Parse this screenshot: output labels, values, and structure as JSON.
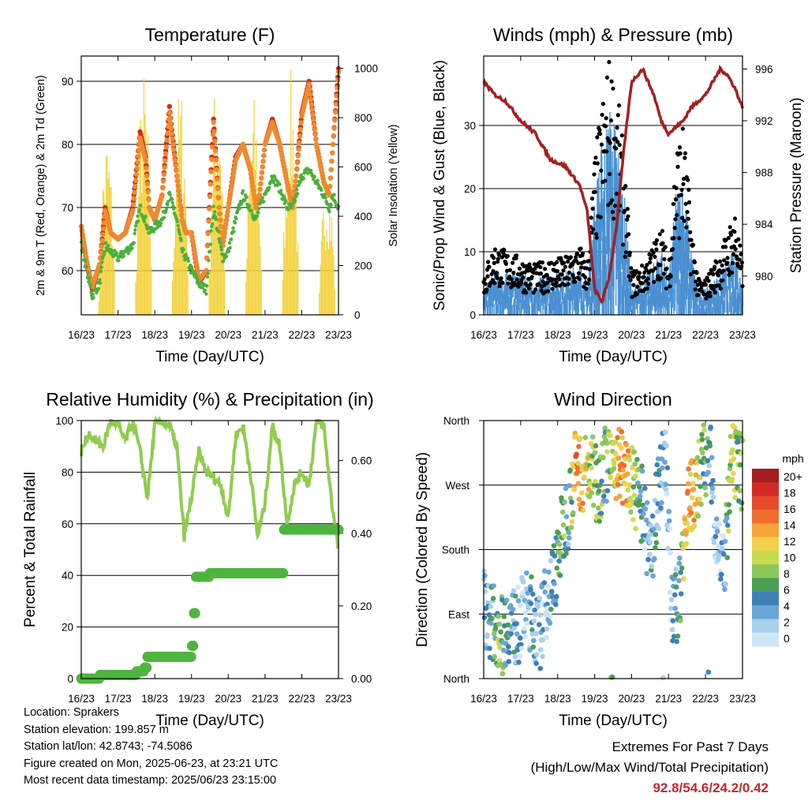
{
  "x_tick_labels": [
    "16/23",
    "17/23",
    "18/23",
    "19/23",
    "20/23",
    "21/23",
    "22/23",
    "23/23"
  ],
  "xlabel": "Time (Day/UTC)",
  "chart_data": [
    {
      "type": "line",
      "title": "Temperature (F)",
      "xlabel": "Time (Day/UTC)",
      "ylabel": "2m & 9m T (Red, Orange) & 2m Td (Green)",
      "y2label": "Solar Insolation (Yellow)",
      "ylim": [
        53,
        94
      ],
      "y2lim": [
        0,
        1050
      ],
      "yticks": [
        60,
        70,
        80,
        90
      ],
      "y2ticks": [
        0,
        200,
        400,
        600,
        800,
        1000
      ],
      "x": [
        0,
        0.15,
        0.3,
        0.5,
        0.65,
        0.8,
        1.0,
        1.2,
        1.4,
        1.6,
        1.75,
        1.85,
        2.0,
        2.2,
        2.4,
        2.6,
        2.75,
        2.85,
        3.0,
        3.2,
        3.4,
        3.6,
        3.75,
        3.85,
        4.0,
        4.2,
        4.4,
        4.6,
        4.75,
        4.85,
        5.0,
        5.2,
        5.4,
        5.6,
        5.75,
        5.85,
        6.0,
        6.2,
        6.4,
        6.6,
        6.75,
        6.85,
        7.0
      ],
      "series": [
        {
          "name": "2m T",
          "color": "#d22b1f",
          "values": [
            67,
            61,
            57,
            61,
            70,
            66,
            65,
            66,
            70,
            82,
            78,
            70,
            68,
            72,
            86,
            75,
            68,
            66,
            66,
            58,
            60,
            84,
            70,
            64,
            70,
            78,
            80,
            76,
            70,
            72,
            80,
            84,
            80,
            74,
            70,
            75,
            85,
            90,
            80,
            74,
            72,
            80,
            92
          ]
        },
        {
          "name": "9m T",
          "color": "#f08a2c",
          "values": [
            67,
            61.5,
            57.5,
            61,
            69.5,
            66,
            65,
            66,
            69.5,
            81,
            77.5,
            70,
            68,
            72,
            85,
            75,
            68,
            66,
            66,
            58.5,
            60,
            83.5,
            70,
            64,
            70,
            77.5,
            80,
            76,
            70,
            72,
            80,
            83.5,
            80,
            74,
            70,
            75,
            84.5,
            89.5,
            80,
            74,
            72,
            80,
            91.5
          ]
        },
        {
          "name": "2m Td",
          "color": "#4caf3a",
          "values": [
            64,
            60,
            56,
            58,
            64,
            63,
            62,
            63,
            64,
            70,
            68,
            66,
            67,
            68,
            72,
            68,
            63,
            62,
            60,
            58,
            57,
            70,
            65,
            62,
            63,
            68,
            72,
            70,
            68,
            70,
            72,
            75,
            73,
            70,
            70,
            72,
            75,
            76,
            74,
            72,
            70,
            72,
            70
          ]
        }
      ],
      "solar": {
        "name": "Solar Insolation",
        "color": "#f3d23c",
        "day_peaks": [
          750,
          1000,
          950,
          1030,
          900,
          1000,
          600,
          950
        ],
        "unit": "W"
      }
    },
    {
      "type": "scatter",
      "title": "Winds (mph) & Pressure (mb)",
      "xlabel": "Time (Day/UTC)",
      "ylabel": "Sonic/Prop Wind & Gust (Blue, Black)",
      "y2label": "Station Pressure (Maroon)",
      "ylim": [
        0,
        41
      ],
      "y2lim": [
        977,
        997
      ],
      "yticks": [
        0,
        10,
        20,
        30
      ],
      "y2ticks": [
        980,
        984,
        988,
        992,
        996
      ],
      "x": [
        0,
        0.3,
        0.6,
        1.0,
        1.4,
        1.8,
        2.2,
        2.6,
        2.8,
        3.0,
        3.2,
        3.4,
        3.6,
        3.8,
        4.0,
        4.3,
        4.6,
        4.8,
        5.0,
        5.2,
        5.4,
        5.6,
        5.8,
        6.0,
        6.2,
        6.4,
        6.6,
        6.8,
        7.0
      ],
      "wind_mean": [
        3,
        5,
        5,
        5,
        4,
        5,
        5,
        6,
        4,
        14,
        20,
        24,
        22,
        14,
        3,
        4,
        6,
        8,
        4,
        14,
        16,
        8,
        3,
        3,
        4,
        5,
        6,
        8,
        4
      ],
      "wind_gust": [
        6,
        10,
        9,
        8,
        7,
        8,
        8,
        10,
        7,
        22,
        30,
        36,
        32,
        22,
        6,
        7,
        10,
        13,
        7,
        24,
        27,
        14,
        5,
        5,
        7,
        9,
        12,
        15,
        7
      ],
      "pressure": [
        995,
        994,
        993.5,
        992,
        991,
        989,
        988.5,
        987,
        985,
        979,
        978,
        980,
        984,
        990,
        995,
        996,
        994,
        992,
        991,
        991.5,
        992,
        993,
        993.5,
        994,
        995,
        996,
        995.5,
        994.5,
        993
      ],
      "colors": {
        "wind": "#4a90d2",
        "gust": "#000000",
        "pressure": "#a31f23"
      }
    },
    {
      "type": "line",
      "title": "Relative Humidity (%) & Precipitation (in)",
      "xlabel": "Time (Day/UTC)",
      "ylabel": "Percent & Total Rainfall",
      "ylim": [
        0,
        100
      ],
      "y2lim": [
        0,
        0.71
      ],
      "yticks": [
        0,
        20,
        40,
        60,
        80,
        100
      ],
      "y2ticks": [
        0.0,
        0.2,
        0.4,
        0.6
      ],
      "y2tick_labels": [
        "0.00",
        "0.20",
        "0.40",
        "0.60"
      ],
      "x": [
        0,
        0.2,
        0.4,
        0.6,
        0.8,
        1.0,
        1.2,
        1.4,
        1.6,
        1.8,
        2.0,
        2.2,
        2.4,
        2.6,
        2.8,
        3.0,
        3.2,
        3.4,
        3.6,
        3.8,
        4.0,
        4.2,
        4.4,
        4.6,
        4.8,
        5.0,
        5.2,
        5.4,
        5.6,
        5.8,
        6.0,
        6.2,
        6.4,
        6.6,
        6.8,
        7.0
      ],
      "series": [
        {
          "name": "Relative Humidity",
          "color": "#90cc4e",
          "values": [
            88,
            95,
            92,
            90,
            100,
            98,
            92,
            100,
            88,
            70,
            98,
            100,
            98,
            90,
            55,
            70,
            88,
            80,
            78,
            75,
            62,
            94,
            98,
            80,
            55,
            68,
            98,
            90,
            60,
            75,
            80,
            75,
            100,
            98,
            70,
            50
          ]
        }
      ],
      "precip": {
        "name": "Total Rainfall",
        "color": "#4fb43f",
        "x": [
          0,
          0.5,
          1.0,
          1.5,
          1.7,
          1.8,
          2.5,
          2.95,
          3.0,
          3.05,
          3.1,
          3.5,
          4.0,
          4.5,
          5.0,
          5.4,
          5.5,
          6.0,
          6.5,
          7.0
        ],
        "values": [
          0,
          0.01,
          0.01,
          0.02,
          0.03,
          0.06,
          0.06,
          0.06,
          0.09,
          0.18,
          0.28,
          0.29,
          0.29,
          0.29,
          0.29,
          0.29,
          0.41,
          0.41,
          0.41,
          0.41
        ]
      }
    },
    {
      "type": "scatter",
      "title": "Wind Direction",
      "xlabel": "Time (Day/UTC)",
      "ylabel": "Direction (Colored By Speed)",
      "yticks": [
        0,
        90,
        180,
        270,
        360
      ],
      "ytick_labels": [
        "North",
        "East",
        "South",
        "West",
        "North"
      ],
      "ylim": [
        0,
        360
      ],
      "colorbar": {
        "title": "mph",
        "labels": [
          "20+",
          "18",
          "16",
          "14",
          "12",
          "10",
          "8",
          "6",
          "4",
          "2",
          "0"
        ],
        "colors": [
          "#a31c1f",
          "#d32a27",
          "#e74a2a",
          "#f26e2e",
          "#f8a23a",
          "#f3cf4a",
          "#c9dc4f",
          "#8cc75c",
          "#4a9e54",
          "#3f7fb8",
          "#6aa6d8",
          "#a8d0ef",
          "#cfe6f7"
        ]
      },
      "x": [
        0.05,
        0.2,
        0.4,
        0.5,
        0.7,
        0.9,
        1.1,
        1.3,
        1.5,
        1.7,
        1.9,
        2.1,
        2.3,
        2.5,
        2.7,
        2.9,
        3.1,
        3.3,
        3.5,
        3.7,
        3.9,
        4.1,
        4.3,
        4.5,
        4.7,
        4.9,
        5.1,
        5.3,
        5.5,
        5.7,
        5.9,
        6.1,
        6.3,
        6.5,
        6.7,
        6.9
      ],
      "direction": [
        100,
        80,
        70,
        60,
        80,
        70,
        95,
        90,
        60,
        110,
        140,
        200,
        240,
        300,
        285,
        290,
        270,
        300,
        310,
        300,
        280,
        260,
        240,
        160,
        250,
        330,
        80,
        120,
        240,
        260,
        300,
        320,
        200,
        140,
        300,
        290
      ],
      "speed": [
        2,
        4,
        8,
        6,
        4,
        3,
        2,
        4,
        3,
        2,
        4,
        8,
        4,
        14,
        12,
        10,
        8,
        6,
        10,
        14,
        12,
        8,
        4,
        3,
        4,
        2,
        3,
        6,
        14,
        12,
        8,
        4,
        2,
        3,
        10,
        8
      ]
    }
  ],
  "info": {
    "location": "Location: Sprakers",
    "elevation": "Station elevation: 199.857 m",
    "latlon": "Station lat/lon: 42.8743; -74.5086",
    "created": "Figure created on Mon, 2025-06-23, at 23:21 UTC",
    "timestamp": "Most recent data timestamp: 2025/06/23 23:15:00"
  },
  "extremes": {
    "title": "Extremes For Past 7 Days",
    "subtitle": "(High/Low/Max Wind/Total Precipitation)",
    "values": "92.8/54.6/24.2/0.42"
  }
}
